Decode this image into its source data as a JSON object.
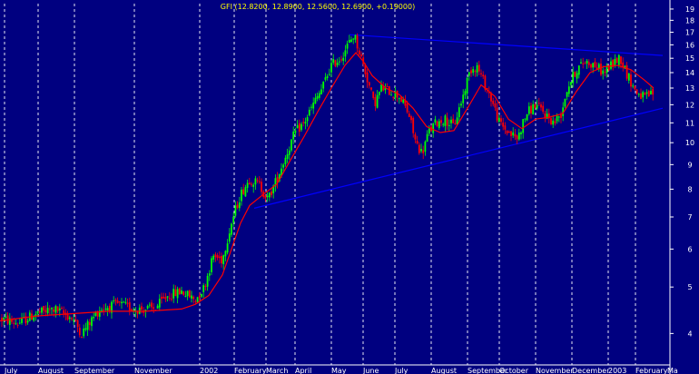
{
  "chart_data": {
    "type": "candlestick",
    "title": "GFI (12.8200, 12.8900, 12.5600, 12.6900, +0.19000)",
    "y_scale": "log",
    "ylim": [
      3.5,
      19.5
    ],
    "y_ticks": [
      4,
      5,
      6,
      7,
      8,
      9,
      10,
      11,
      12,
      13,
      14,
      15,
      16,
      17,
      18,
      19
    ],
    "x_ticks": [
      "July",
      "August",
      "September",
      "November",
      "2002",
      "February",
      "March",
      "April",
      "May",
      "June",
      "July",
      "August",
      "September",
      "October",
      "November",
      "December",
      "2003",
      "February",
      "Ma"
    ],
    "grid": "vertical dashed",
    "colors": {
      "background": "#000080",
      "grid": "#ffffff",
      "up": "#00ff00",
      "down": "#ff0000",
      "moving_average": "#ff0000",
      "trendline": "#0000ff",
      "title": "#ffff00"
    },
    "price_path": [
      [
        0,
        4.3
      ],
      [
        20,
        4.2
      ],
      [
        40,
        4.4
      ],
      [
        60,
        4.5
      ],
      [
        80,
        4.3
      ],
      [
        90,
        4.0
      ],
      [
        110,
        4.5
      ],
      [
        130,
        4.6
      ],
      [
        150,
        4.5
      ],
      [
        170,
        4.5
      ],
      [
        185,
        4.8
      ],
      [
        200,
        4.9
      ],
      [
        215,
        4.7
      ],
      [
        225,
        5.0
      ],
      [
        235,
        5.8
      ],
      [
        245,
        5.7
      ],
      [
        255,
        6.8
      ],
      [
        265,
        7.8
      ],
      [
        275,
        8.4
      ],
      [
        285,
        8.2
      ],
      [
        295,
        7.6
      ],
      [
        305,
        8.4
      ],
      [
        315,
        9.4
      ],
      [
        325,
        10.5
      ],
      [
        335,
        11.0
      ],
      [
        345,
        12.0
      ],
      [
        355,
        13.0
      ],
      [
        365,
        14.5
      ],
      [
        375,
        15.0
      ],
      [
        385,
        16.2
      ],
      [
        390,
        16.8
      ],
      [
        398,
        15.0
      ],
      [
        405,
        13.5
      ],
      [
        412,
        12.0
      ],
      [
        420,
        13.0
      ],
      [
        430,
        12.8
      ],
      [
        440,
        12.5
      ],
      [
        450,
        11.5
      ],
      [
        458,
        10.0
      ],
      [
        465,
        9.5
      ],
      [
        472,
        10.5
      ],
      [
        480,
        11.0
      ],
      [
        490,
        11.2
      ],
      [
        500,
        10.8
      ],
      [
        510,
        12.5
      ],
      [
        518,
        14.2
      ],
      [
        525,
        14.5
      ],
      [
        532,
        13.5
      ],
      [
        540,
        12.5
      ],
      [
        550,
        11.0
      ],
      [
        560,
        10.5
      ],
      [
        570,
        10.2
      ],
      [
        580,
        11.5
      ],
      [
        590,
        12.0
      ],
      [
        600,
        11.5
      ],
      [
        610,
        11.0
      ],
      [
        618,
        11.5
      ],
      [
        625,
        13.0
      ],
      [
        635,
        14.2
      ],
      [
        645,
        14.8
      ],
      [
        655,
        14.5
      ],
      [
        665,
        14.0
      ],
      [
        675,
        14.6
      ],
      [
        683,
        15.1
      ],
      [
        690,
        14.0
      ],
      [
        700,
        12.8
      ],
      [
        710,
        12.4
      ],
      [
        720,
        12.7
      ]
    ],
    "moving_average": [
      [
        0,
        4.25
      ],
      [
        40,
        4.35
      ],
      [
        80,
        4.4
      ],
      [
        120,
        4.45
      ],
      [
        160,
        4.45
      ],
      [
        200,
        4.5
      ],
      [
        215,
        4.6
      ],
      [
        230,
        4.8
      ],
      [
        245,
        5.3
      ],
      [
        255,
        6.0
      ],
      [
        265,
        6.8
      ],
      [
        275,
        7.4
      ],
      [
        290,
        7.8
      ],
      [
        305,
        8.2
      ],
      [
        320,
        9.2
      ],
      [
        335,
        10.3
      ],
      [
        350,
        11.6
      ],
      [
        365,
        13.0
      ],
      [
        380,
        14.5
      ],
      [
        392,
        15.4
      ],
      [
        400,
        14.8
      ],
      [
        410,
        13.8
      ],
      [
        425,
        13.0
      ],
      [
        440,
        12.6
      ],
      [
        455,
        11.8
      ],
      [
        470,
        10.8
      ],
      [
        485,
        10.5
      ],
      [
        500,
        10.6
      ],
      [
        515,
        11.8
      ],
      [
        530,
        13.2
      ],
      [
        545,
        12.5
      ],
      [
        560,
        11.2
      ],
      [
        575,
        10.7
      ],
      [
        590,
        11.2
      ],
      [
        605,
        11.3
      ],
      [
        620,
        11.5
      ],
      [
        635,
        12.8
      ],
      [
        650,
        14.0
      ],
      [
        665,
        14.4
      ],
      [
        680,
        14.5
      ],
      [
        695,
        14.2
      ],
      [
        710,
        13.5
      ],
      [
        720,
        13.0
      ]
    ],
    "trendlines": [
      {
        "from": [
          385,
          16.8
        ],
        "to": [
          730,
          15.2
        ]
      },
      {
        "from": [
          280,
          7.3
        ],
        "to": [
          730,
          11.8
        ]
      }
    ]
  }
}
